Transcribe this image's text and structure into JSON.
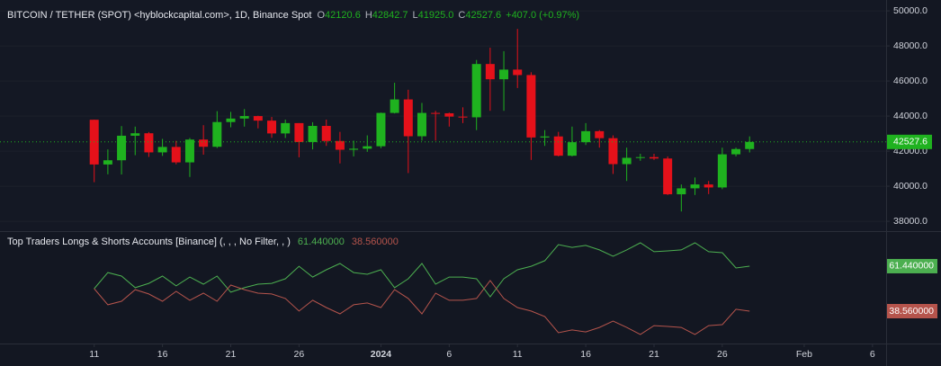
{
  "chart_data": [
    {
      "type": "candlestick",
      "title": "BITCOIN / TETHER (SPOT) <hyblockcapital.com>, 1D, Binance Spot",
      "last_keys": [
        "O",
        "H",
        "L",
        "C"
      ],
      "last_labels": [
        "42120.6",
        "42842.7",
        "41925.0",
        "42527.6"
      ],
      "change_label": "+407.0 (+0.97%)",
      "up_color": "#1fb21f",
      "down_color": "#e5111a",
      "x": [
        0,
        1,
        2,
        3,
        4,
        5,
        6,
        7,
        8,
        9,
        10,
        11,
        12,
        13,
        14,
        15,
        16,
        17,
        18,
        19,
        20,
        21,
        22,
        23,
        24,
        25,
        26,
        27,
        28,
        29,
        30,
        31,
        32,
        33,
        34,
        35,
        36,
        37,
        38,
        39,
        40,
        41,
        42,
        43,
        44,
        45,
        46,
        47,
        48
      ],
      "open": [
        43790,
        41240,
        41480,
        42880,
        43020,
        41930,
        42240,
        41360,
        42660,
        42250,
        43660,
        43860,
        44000,
        43740,
        43010,
        43600,
        42520,
        43440,
        42580,
        42080,
        42140,
        42280,
        44180,
        44950,
        42850,
        44180,
        44160,
        43970,
        43930,
        46970,
        46100,
        46650,
        46340,
        42780,
        42840,
        41740,
        42510,
        43140,
        42740,
        41260,
        41620,
        41660,
        41580,
        39540,
        39880,
        40100,
        39930,
        41820,
        42120.6
      ],
      "high": [
        43800,
        42100,
        43430,
        43400,
        43090,
        42700,
        42590,
        42750,
        43480,
        44280,
        44240,
        44400,
        44020,
        43950,
        43800,
        43600,
        43650,
        43800,
        43100,
        42600,
        42900,
        44200,
        45900,
        45500,
        44750,
        44300,
        44200,
        44500,
        47200,
        47900,
        47700,
        48970,
        46500,
        43200,
        43100,
        43400,
        43600,
        43200,
        42900,
        42200,
        41850,
        41850,
        41700,
        40100,
        40500,
        40300,
        42200,
        42200,
        42842.7
      ],
      "low": [
        40230,
        40680,
        40670,
        41770,
        41670,
        41730,
        41250,
        40530,
        41800,
        42180,
        43360,
        43400,
        43300,
        42760,
        42750,
        41650,
        42100,
        42300,
        41300,
        41700,
        41960,
        42170,
        44150,
        40750,
        42600,
        42600,
        43400,
        43600,
        43200,
        44300,
        44300,
        45600,
        41500,
        42300,
        41700,
        41700,
        42350,
        42200,
        40700,
        40300,
        41450,
        41500,
        39500,
        38560,
        39500,
        39550,
        39830,
        41700,
        41925
      ],
      "close": [
        41240,
        41480,
        42880,
        43020,
        41930,
        42240,
        41360,
        42660,
        42250,
        43660,
        43860,
        44000,
        43740,
        43010,
        43600,
        42520,
        43440,
        42580,
        42080,
        42140,
        42280,
        44180,
        44950,
        42850,
        44180,
        44160,
        43970,
        43930,
        46970,
        46100,
        46650,
        46340,
        42780,
        42840,
        41740,
        42510,
        43140,
        42740,
        41260,
        41620,
        41660,
        41580,
        39540,
        39880,
        40100,
        39930,
        41820,
        42120,
        42527.6
      ],
      "xlim": [
        -6.9,
        58
      ],
      "ylim": [
        37440,
        50620
      ],
      "yticks": [
        {
          "value": 38000,
          "label": "38000.0"
        },
        {
          "value": 40000,
          "label": "40000.0"
        },
        {
          "value": 42000,
          "label": "42000.0"
        },
        {
          "value": 44000,
          "label": "44000.0"
        },
        {
          "value": 46000,
          "label": "46000.0"
        },
        {
          "value": 48000,
          "label": "48000.0"
        },
        {
          "value": 50000,
          "label": "50000.0"
        }
      ]
    },
    {
      "type": "line",
      "title": "Top Traders Longs & Shorts Accounts [Binance] (, , , No Filter, , )",
      "x": [
        0,
        1,
        2,
        3,
        4,
        5,
        6,
        7,
        8,
        9,
        10,
        11,
        12,
        13,
        14,
        15,
        16,
        17,
        18,
        19,
        20,
        21,
        22,
        23,
        24,
        25,
        26,
        27,
        28,
        29,
        30,
        31,
        32,
        33,
        34,
        35,
        36,
        37,
        38,
        39,
        40,
        41,
        42,
        43,
        44,
        45,
        46,
        47,
        48
      ],
      "series": [
        {
          "color": "#4caf50",
          "value_labels": [
            "61.440000"
          ],
          "values": [
            50.0,
            58.2,
            56.4,
            50.5,
            52.7,
            56.4,
            51.4,
            55.9,
            52.3,
            56.4,
            48.2,
            50.5,
            52.3,
            52.7,
            55.0,
            61.4,
            55.9,
            59.6,
            62.8,
            58.2,
            57.3,
            59.6,
            50.5,
            55.0,
            62.8,
            52.3,
            55.9,
            55.9,
            55.0,
            45.9,
            55.0,
            59.6,
            61.4,
            64.2,
            72.4,
            71.0,
            72.0,
            69.7,
            66.5,
            69.7,
            73.3,
            68.8,
            69.2,
            69.7,
            73.3,
            68.8,
            68.3,
            60.5,
            61.44
          ]
        },
        {
          "color": "#b5544c",
          "value_labels": [
            "38.560000"
          ],
          "values": [
            50.0,
            41.8,
            43.6,
            49.5,
            47.3,
            43.6,
            48.6,
            44.1,
            47.7,
            43.6,
            51.8,
            49.5,
            47.7,
            47.3,
            45.0,
            38.6,
            44.1,
            40.4,
            37.2,
            41.8,
            42.7,
            40.4,
            49.5,
            45.0,
            37.2,
            47.7,
            44.1,
            44.1,
            45.0,
            54.1,
            45.0,
            40.4,
            38.6,
            35.8,
            27.6,
            29.0,
            28.0,
            30.3,
            33.5,
            30.3,
            26.7,
            31.2,
            30.8,
            30.3,
            26.7,
            31.2,
            31.7,
            39.5,
            38.56
          ]
        }
      ],
      "xlim": [
        -6.9,
        58
      ],
      "ylim": [
        22.1,
        78.8
      ],
      "xticks": [
        {
          "value": 0,
          "label": "11"
        },
        {
          "value": 5,
          "label": "16"
        },
        {
          "value": 10,
          "label": "21"
        },
        {
          "value": 15,
          "label": "26"
        },
        {
          "value": 21,
          "label": "2024"
        },
        {
          "value": 26,
          "label": "6"
        },
        {
          "value": 31,
          "label": "11"
        },
        {
          "value": 36,
          "label": "16"
        },
        {
          "value": 41,
          "label": "21"
        },
        {
          "value": 46,
          "label": "26"
        },
        {
          "value": 52,
          "label": "Feb"
        },
        {
          "value": 57,
          "label": "6"
        }
      ]
    }
  ]
}
